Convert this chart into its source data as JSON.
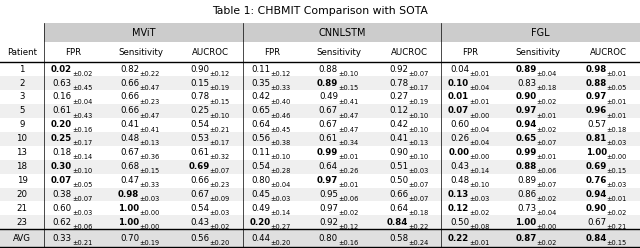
{
  "title": "Table 1: CHBMIT Comparison with SOTA",
  "patients": [
    "1",
    "2",
    "3",
    "5",
    "9",
    "10",
    "13",
    "18",
    "19",
    "20",
    "21",
    "23",
    "AVG"
  ],
  "data": {
    "MViT": {
      "FPR": [
        [
          "0.02",
          "0.02",
          true
        ],
        [
          "0.63",
          "0.45",
          false
        ],
        [
          "0.16",
          "0.04",
          false
        ],
        [
          "0.61",
          "0.43",
          false
        ],
        [
          "0.20",
          "0.16",
          true
        ],
        [
          "0.25",
          "0.17",
          true
        ],
        [
          "0.18",
          "0.14",
          false
        ],
        [
          "0.30",
          "0.10",
          true
        ],
        [
          "0.07",
          "0.05",
          true
        ],
        [
          "0.38",
          "0.07",
          false
        ],
        [
          "0.60",
          "0.03",
          false
        ],
        [
          "0.62",
          "0.06",
          false
        ],
        [
          "0.33",
          "0.21",
          false
        ]
      ],
      "Sensitivity": [
        [
          "0.82",
          "0.22",
          false
        ],
        [
          "0.66",
          "0.47",
          false
        ],
        [
          "0.66",
          "0.23",
          false
        ],
        [
          "0.66",
          "0.47",
          false
        ],
        [
          "0.41",
          "0.41",
          false
        ],
        [
          "0.48",
          "0.13",
          false
        ],
        [
          "0.67",
          "0.36",
          false
        ],
        [
          "0.68",
          "0.15",
          false
        ],
        [
          "0.47",
          "0.33",
          false
        ],
        [
          "0.98",
          "0.03",
          true
        ],
        [
          "1.00",
          "0.00",
          true
        ],
        [
          "1.00",
          "0.00",
          true
        ],
        [
          "0.70",
          "0.19",
          false
        ]
      ],
      "AUCROC": [
        [
          "0.90",
          "0.12",
          false
        ],
        [
          "0.15",
          "0.19",
          false
        ],
        [
          "0.78",
          "0.15",
          false
        ],
        [
          "0.25",
          "0.10",
          false
        ],
        [
          "0.54",
          "0.21",
          false
        ],
        [
          "0.53",
          "0.17",
          false
        ],
        [
          "0.61",
          "0.32",
          false
        ],
        [
          "0.69",
          "0.07",
          true
        ],
        [
          "0.66",
          "0.23",
          false
        ],
        [
          "0.67",
          "0.09",
          false
        ],
        [
          "0.54",
          "0.03",
          false
        ],
        [
          "0.43",
          "0.02",
          false
        ],
        [
          "0.56",
          "0.20",
          false
        ]
      ]
    },
    "CNNLSTM": {
      "FPR": [
        [
          "0.11",
          "0.12",
          false
        ],
        [
          "0.35",
          "0.33",
          false
        ],
        [
          "0.42",
          "0.40",
          false
        ],
        [
          "0.65",
          "0.46",
          false
        ],
        [
          "0.64",
          "0.45",
          false
        ],
        [
          "0.56",
          "0.38",
          false
        ],
        [
          "0.11",
          "0.10",
          false
        ],
        [
          "0.54",
          "0.28",
          false
        ],
        [
          "0.80",
          "0.04",
          false
        ],
        [
          "0.45",
          "0.03",
          false
        ],
        [
          "0.49",
          "0.14",
          false
        ],
        [
          "0.20",
          "0.27",
          true
        ],
        [
          "0.44",
          "0.20",
          false
        ]
      ],
      "Sensitivity": [
        [
          "0.88",
          "0.10",
          false
        ],
        [
          "0.89",
          "0.15",
          true
        ],
        [
          "0.49",
          "0.41",
          false
        ],
        [
          "0.67",
          "0.47",
          false
        ],
        [
          "0.67",
          "0.47",
          false
        ],
        [
          "0.61",
          "0.34",
          false
        ],
        [
          "0.99",
          "0.01",
          true
        ],
        [
          "0.64",
          "0.26",
          false
        ],
        [
          "0.97",
          "0.01",
          true
        ],
        [
          "0.95",
          "0.06",
          false
        ],
        [
          "0.97",
          "0.02",
          false
        ],
        [
          "0.92",
          "0.12",
          false
        ],
        [
          "0.80",
          "0.16",
          false
        ]
      ],
      "AUCROC": [
        [
          "0.92",
          "0.07",
          false
        ],
        [
          "0.78",
          "0.17",
          false
        ],
        [
          "0.27",
          "0.19",
          false
        ],
        [
          "0.12",
          "0.10",
          false
        ],
        [
          "0.42",
          "0.10",
          false
        ],
        [
          "0.41",
          "0.13",
          false
        ],
        [
          "0.90",
          "0.10",
          false
        ],
        [
          "0.51",
          "0.03",
          false
        ],
        [
          "0.50",
          "0.07",
          false
        ],
        [
          "0.66",
          "0.07",
          false
        ],
        [
          "0.64",
          "0.18",
          false
        ],
        [
          "0.84",
          "0.22",
          true
        ],
        [
          "0.58",
          "0.24",
          false
        ]
      ]
    },
    "FGL": {
      "FPR": [
        [
          "0.04",
          "0.01",
          false
        ],
        [
          "0.10",
          "0.04",
          true
        ],
        [
          "0.01",
          "0.01",
          true
        ],
        [
          "0.07",
          "0.00",
          true
        ],
        [
          "0.60",
          "0.04",
          false
        ],
        [
          "0.26",
          "0.04",
          false
        ],
        [
          "0.00",
          "0.00",
          true
        ],
        [
          "0.43",
          "0.14",
          false
        ],
        [
          "0.48",
          "0.10",
          false
        ],
        [
          "0.13",
          "0.03",
          true
        ],
        [
          "0.12",
          "0.02",
          true
        ],
        [
          "0.50",
          "0.08",
          false
        ],
        [
          "0.22",
          "0.01",
          true
        ]
      ],
      "Sensitivity": [
        [
          "0.89",
          "0.04",
          true
        ],
        [
          "0.83",
          "0.18",
          false
        ],
        [
          "0.90",
          "0.02",
          true
        ],
        [
          "0.97",
          "0.01",
          true
        ],
        [
          "0.94",
          "0.02",
          true
        ],
        [
          "0.65",
          "0.07",
          true
        ],
        [
          "0.99",
          "0.01",
          true
        ],
        [
          "0.88",
          "0.06",
          true
        ],
        [
          "0.89",
          "0.07",
          false
        ],
        [
          "0.86",
          "0.02",
          false
        ],
        [
          "0.73",
          "0.04",
          false
        ],
        [
          "1.00",
          "0.00",
          true
        ],
        [
          "0.87",
          "0.02",
          true
        ]
      ],
      "AUCROC": [
        [
          "0.98",
          "0.01",
          true
        ],
        [
          "0.88",
          "0.05",
          true
        ],
        [
          "0.97",
          "0.01",
          true
        ],
        [
          "0.96",
          "0.01",
          true
        ],
        [
          "0.57",
          "0.18",
          false
        ],
        [
          "0.81",
          "0.03",
          true
        ],
        [
          "1.00",
          "0.00",
          true
        ],
        [
          "0.69",
          "0.15",
          true
        ],
        [
          "0.76",
          "0.03",
          true
        ],
        [
          "0.94",
          "0.01",
          true
        ],
        [
          "0.90",
          "0.02",
          true
        ],
        [
          "0.67",
          "0.21",
          false
        ],
        [
          "0.84",
          "0.15",
          true
        ]
      ]
    }
  },
  "group_bg": "#cccccc",
  "avg_bg": "#e0e0e0",
  "row_bg_odd": "#efefef",
  "row_bg_even": "#ffffff"
}
